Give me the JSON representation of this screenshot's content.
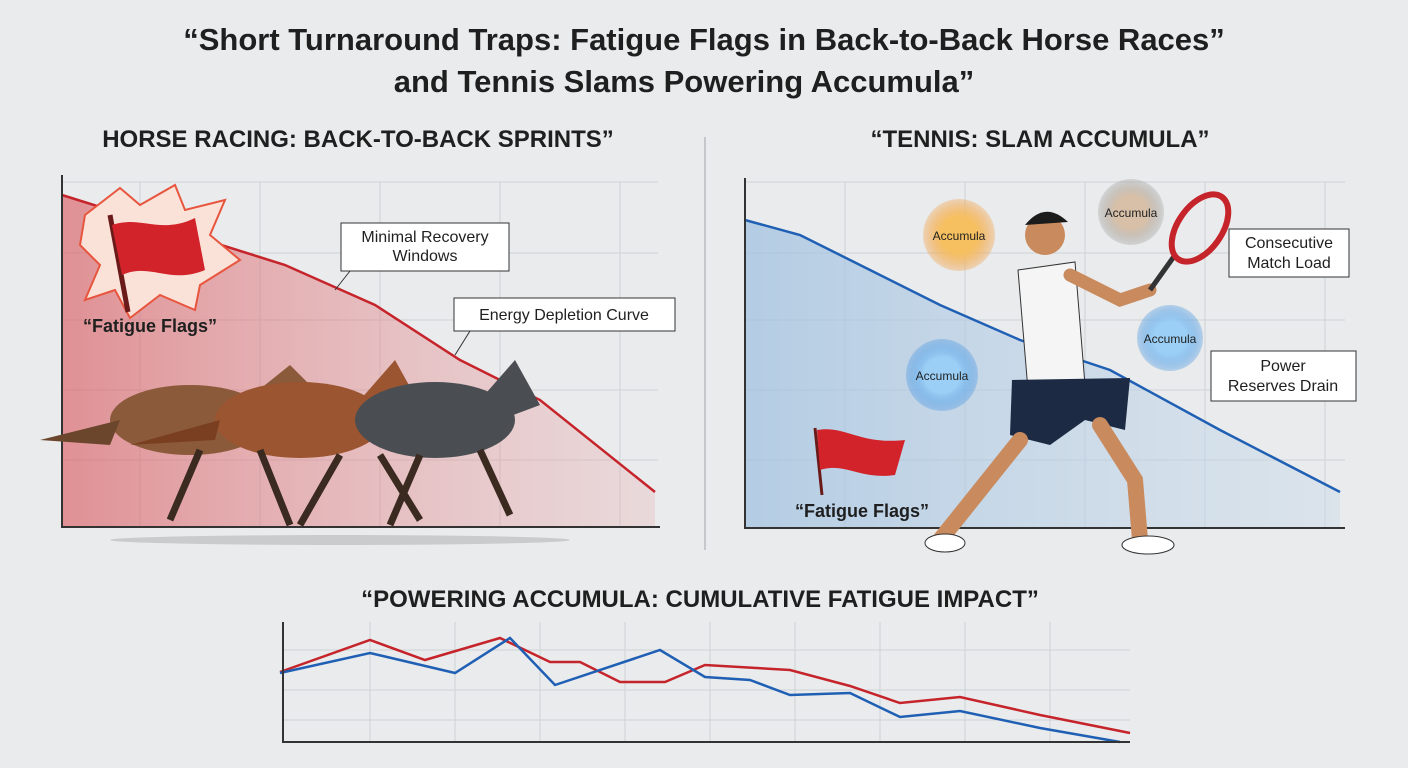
{
  "header": {
    "title_lines": [
      "“Short Turnaround Traps: Fatigue Flags in Back-to-Back Horse Races”",
      "and Tennis Slams Powering Accumula”"
    ]
  },
  "horse_panel": {
    "title": "HORSE RACING: BACK-TO-BACK SPRINTS”",
    "callouts": [
      {
        "lines": [
          "Minimal Recovery",
          "Windows"
        ]
      },
      {
        "lines": [
          "Energy Depletion Curve"
        ]
      }
    ],
    "flag_label": "“Fatigue Flags”"
  },
  "tennis_panel": {
    "title": "“TENNIS: SLAM ACCUMULA”",
    "orbs": [
      "Accumula",
      "Accumula",
      "Accumula",
      "Accumula"
    ],
    "callouts": [
      {
        "lines": [
          "Consecutive",
          "Match Load"
        ]
      },
      {
        "lines": [
          "Power",
          "Reserves Drain"
        ]
      }
    ],
    "flag_label": "“Fatigue Flags”"
  },
  "impact_panel": {
    "title": "“POWERING ACCUMULA: CUMULATIVE FATIGUE IMPACT”"
  }
}
